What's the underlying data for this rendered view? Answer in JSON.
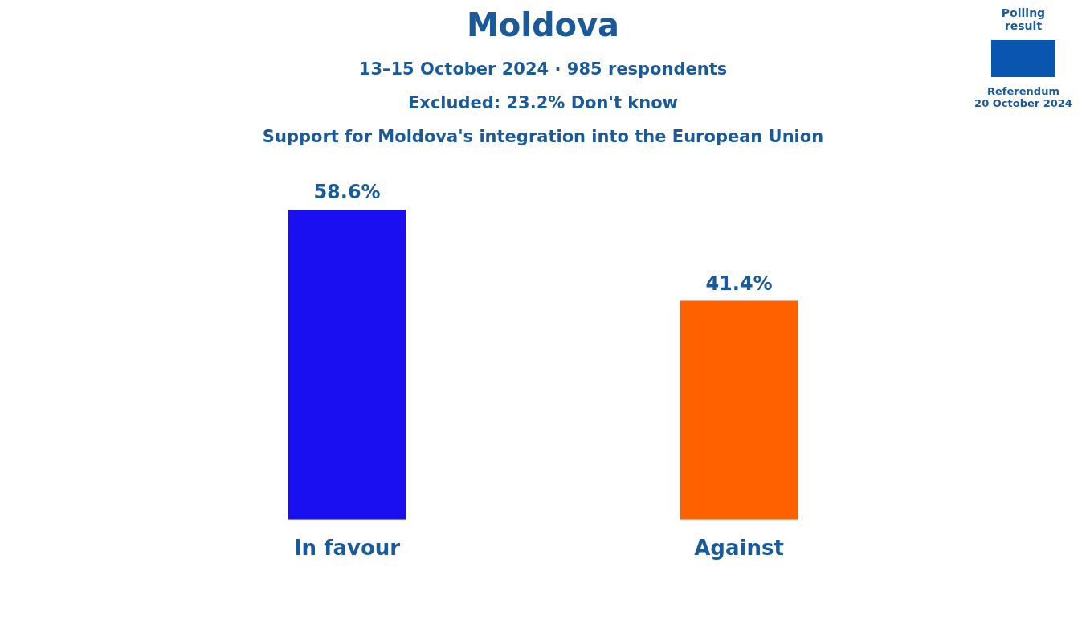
{
  "chart_data": {
    "type": "bar",
    "title": "Moldova",
    "subtitle": "13–15 October 2024 · 985 respondents",
    "annotations": [
      "Excluded: 23.2% Don't know",
      "Support for Moldova's integration into the European Union",
      "Polling result",
      "Referendum",
      "20 October 2024"
    ],
    "categories": [
      "In favour",
      "Against"
    ],
    "values": [
      58.6,
      41.4
    ],
    "colors": [
      "#1a0ff0",
      "#ff6000"
    ],
    "value_labels": [
      "58.6%",
      "41.4%"
    ],
    "tick_labels": "x",
    "grid": false,
    "legend": false
  }
}
